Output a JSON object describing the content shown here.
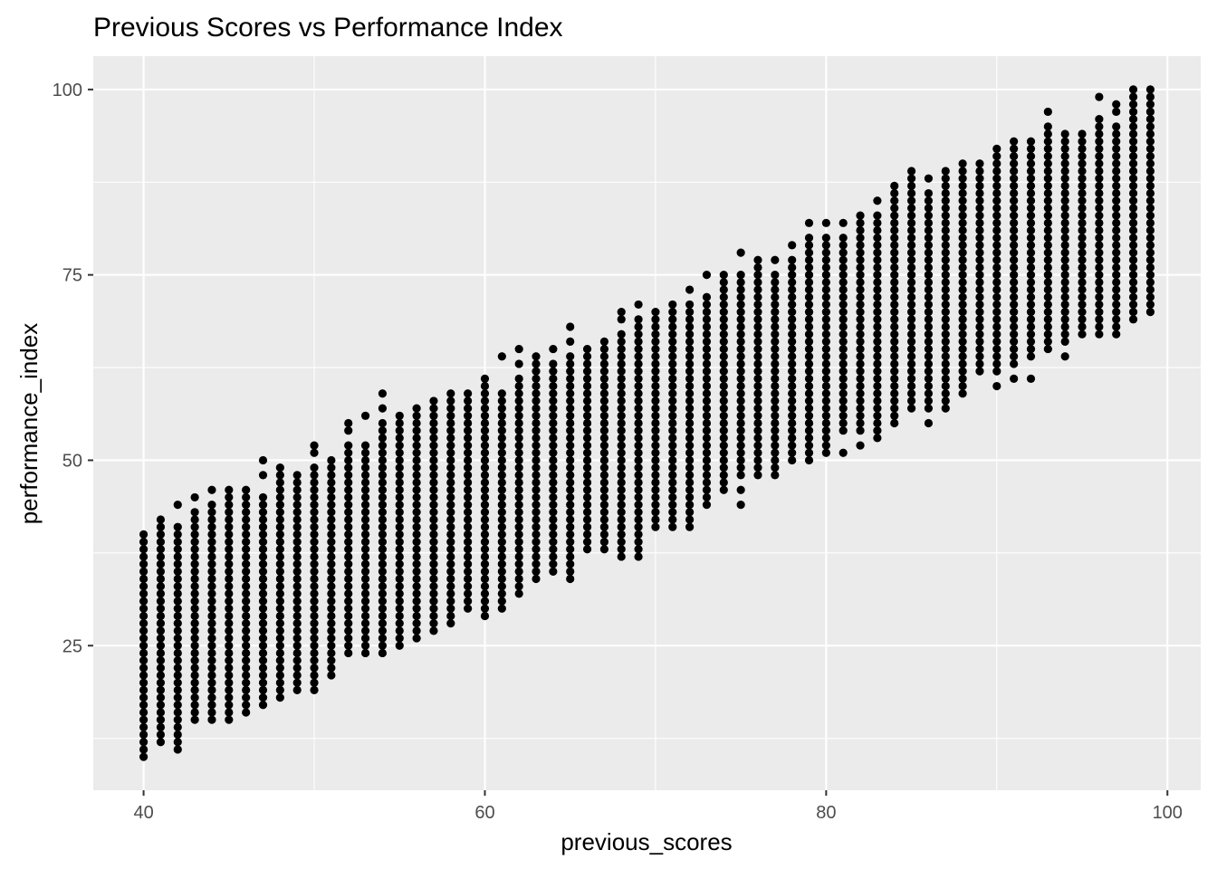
{
  "chart_data": {
    "type": "scatter",
    "title": "Previous Scores vs Performance Index",
    "xlabel": "previous_scores",
    "ylabel": "performance_index",
    "xlim": [
      37.05,
      101.95
    ],
    "ylim": [
      5.5,
      104.5
    ],
    "x_ticks": [
      40,
      60,
      80,
      100
    ],
    "y_ticks": [
      25,
      50,
      75,
      100
    ],
    "grid": true,
    "panel_background": "#ebebeb",
    "point_color": "#000000",
    "columns": [
      {
        "x": 40,
        "min": 10,
        "max": 40,
        "extra": []
      },
      {
        "x": 41,
        "min": 12,
        "max": 42,
        "extra": []
      },
      {
        "x": 42,
        "min": 11,
        "max": 41,
        "extra": [
          44
        ]
      },
      {
        "x": 43,
        "min": 15,
        "max": 43,
        "extra": [
          45
        ]
      },
      {
        "x": 44,
        "min": 15,
        "max": 44,
        "extra": [
          46
        ]
      },
      {
        "x": 45,
        "min": 15,
        "max": 46,
        "extra": []
      },
      {
        "x": 46,
        "min": 16,
        "max": 46,
        "extra": []
      },
      {
        "x": 47,
        "min": 17,
        "max": 45,
        "extra": [
          48,
          50
        ]
      },
      {
        "x": 48,
        "min": 18,
        "max": 49,
        "extra": []
      },
      {
        "x": 49,
        "min": 19,
        "max": 48,
        "extra": []
      },
      {
        "x": 50,
        "min": 19,
        "max": 49,
        "extra": [
          51,
          52
        ]
      },
      {
        "x": 51,
        "min": 21,
        "max": 50,
        "extra": []
      },
      {
        "x": 52,
        "min": 24,
        "max": 52,
        "extra": [
          54,
          55
        ]
      },
      {
        "x": 53,
        "min": 24,
        "max": 52,
        "extra": [
          56
        ]
      },
      {
        "x": 54,
        "min": 24,
        "max": 55,
        "extra": [
          57,
          59
        ]
      },
      {
        "x": 55,
        "min": 25,
        "max": 56,
        "extra": []
      },
      {
        "x": 56,
        "min": 26,
        "max": 57,
        "extra": []
      },
      {
        "x": 57,
        "min": 27,
        "max": 58,
        "extra": []
      },
      {
        "x": 58,
        "min": 28,
        "max": 59,
        "extra": []
      },
      {
        "x": 59,
        "min": 30,
        "max": 59,
        "extra": []
      },
      {
        "x": 60,
        "min": 29,
        "max": 61,
        "extra": []
      },
      {
        "x": 61,
        "min": 30,
        "max": 59,
        "extra": [
          64
        ]
      },
      {
        "x": 62,
        "min": 32,
        "max": 61,
        "extra": [
          63,
          65
        ]
      },
      {
        "x": 63,
        "min": 34,
        "max": 64,
        "extra": []
      },
      {
        "x": 64,
        "min": 35,
        "max": 63,
        "extra": [
          65
        ]
      },
      {
        "x": 65,
        "min": 34,
        "max": 64,
        "extra": [
          66,
          68
        ]
      },
      {
        "x": 66,
        "min": 38,
        "max": 65,
        "extra": []
      },
      {
        "x": 67,
        "min": 38,
        "max": 66,
        "extra": []
      },
      {
        "x": 68,
        "min": 37,
        "max": 67,
        "extra": [
          69,
          70
        ]
      },
      {
        "x": 69,
        "min": 37,
        "max": 69,
        "extra": [
          71
        ]
      },
      {
        "x": 70,
        "min": 41,
        "max": 70,
        "extra": []
      },
      {
        "x": 71,
        "min": 41,
        "max": 71,
        "extra": []
      },
      {
        "x": 72,
        "min": 41,
        "max": 71,
        "extra": [
          73
        ]
      },
      {
        "x": 73,
        "min": 44,
        "max": 72,
        "extra": [
          75
        ]
      },
      {
        "x": 74,
        "min": 46,
        "max": 75,
        "extra": []
      },
      {
        "x": 75,
        "min": 48,
        "max": 75,
        "extra": [
          44,
          46,
          78
        ]
      },
      {
        "x": 76,
        "min": 48,
        "max": 77,
        "extra": []
      },
      {
        "x": 77,
        "min": 48,
        "max": 75,
        "extra": [
          77
        ]
      },
      {
        "x": 78,
        "min": 50,
        "max": 77,
        "extra": [
          79
        ]
      },
      {
        "x": 79,
        "min": 50,
        "max": 80,
        "extra": [
          82
        ]
      },
      {
        "x": 80,
        "min": 51,
        "max": 80,
        "extra": [
          82
        ]
      },
      {
        "x": 81,
        "min": 54,
        "max": 80,
        "extra": [
          51,
          82
        ]
      },
      {
        "x": 82,
        "min": 54,
        "max": 83,
        "extra": [
          52
        ]
      },
      {
        "x": 83,
        "min": 53,
        "max": 83,
        "extra": [
          85
        ]
      },
      {
        "x": 84,
        "min": 55,
        "max": 85,
        "extra": [
          86,
          87
        ]
      },
      {
        "x": 85,
        "min": 57,
        "max": 89,
        "extra": []
      },
      {
        "x": 86,
        "min": 57,
        "max": 86,
        "extra": [
          55,
          88
        ]
      },
      {
        "x": 87,
        "min": 57,
        "max": 89,
        "extra": []
      },
      {
        "x": 88,
        "min": 61,
        "max": 90,
        "extra": [
          59,
          60
        ]
      },
      {
        "x": 89,
        "min": 62,
        "max": 90,
        "extra": []
      },
      {
        "x": 90,
        "min": 62,
        "max": 92,
        "extra": [
          60
        ]
      },
      {
        "x": 91,
        "min": 63,
        "max": 93,
        "extra": [
          61
        ]
      },
      {
        "x": 92,
        "min": 64,
        "max": 93,
        "extra": [
          61
        ]
      },
      {
        "x": 93,
        "min": 65,
        "max": 95,
        "extra": [
          97
        ]
      },
      {
        "x": 94,
        "min": 66,
        "max": 94,
        "extra": [
          64
        ]
      },
      {
        "x": 95,
        "min": 67,
        "max": 94,
        "extra": []
      },
      {
        "x": 96,
        "min": 67,
        "max": 95,
        "extra": [
          96,
          99
        ]
      },
      {
        "x": 97,
        "min": 67,
        "max": 95,
        "extra": [
          97,
          98
        ]
      },
      {
        "x": 98,
        "min": 69,
        "max": 100,
        "extra": []
      },
      {
        "x": 99,
        "min": 70,
        "max": 100,
        "extra": []
      }
    ]
  }
}
